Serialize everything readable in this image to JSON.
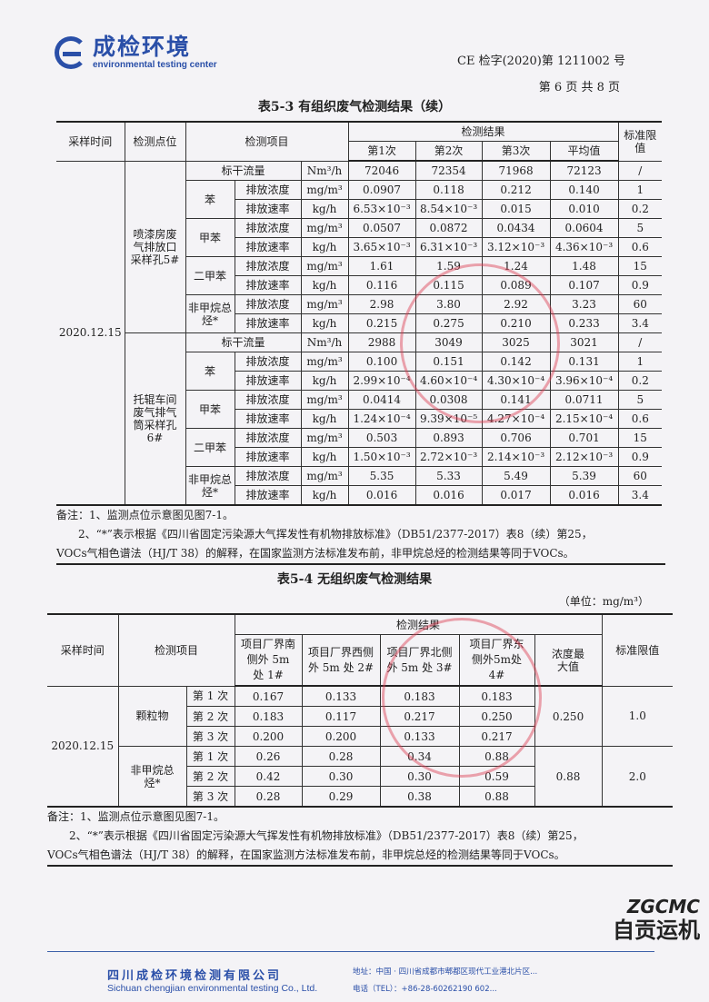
{
  "header": {
    "logo_cn": "成检环境",
    "logo_en": "environmental testing center",
    "doc_no": "CE 检字(2020)第 1211002 号",
    "page": "第 6 页 共 8 页"
  },
  "table1": {
    "title": "表5-3  有组织废气检测结果（续）",
    "headers": {
      "date": "采样时间",
      "location": "检测点位",
      "item": "检测项目",
      "results": "检测结果",
      "runs": [
        "第1次",
        "第2次",
        "第3次",
        "平均值"
      ],
      "limit": "标准限值"
    },
    "date": "2020.12.15",
    "groups": [
      {
        "location": "喷漆房废气排放口采样孔5#",
        "flow": {
          "label": "标干流量",
          "unit": "Nm³/h",
          "values": [
            "72046",
            "72354",
            "71968",
            "72123"
          ],
          "limit": "/"
        },
        "pollutants": [
          {
            "name": "苯",
            "rows": [
              {
                "item": "排放浓度",
                "unit": "mg/m³",
                "values": [
                  "0.0907",
                  "0.118",
                  "0.212",
                  "0.140"
                ],
                "limit": "1"
              },
              {
                "item": "排放速率",
                "unit": "kg/h",
                "values": [
                  "6.53×10⁻³",
                  "8.54×10⁻³",
                  "0.015",
                  "0.010"
                ],
                "limit": "0.2"
              }
            ]
          },
          {
            "name": "甲苯",
            "rows": [
              {
                "item": "排放浓度",
                "unit": "mg/m³",
                "values": [
                  "0.0507",
                  "0.0872",
                  "0.0434",
                  "0.0604"
                ],
                "limit": "5"
              },
              {
                "item": "排放速率",
                "unit": "kg/h",
                "values": [
                  "3.65×10⁻³",
                  "6.31×10⁻³",
                  "3.12×10⁻³",
                  "4.36×10⁻³"
                ],
                "limit": "0.6"
              }
            ]
          },
          {
            "name": "二甲苯",
            "rows": [
              {
                "item": "排放浓度",
                "unit": "mg/m³",
                "values": [
                  "1.61",
                  "1.59",
                  "1.24",
                  "1.48"
                ],
                "limit": "15"
              },
              {
                "item": "排放速率",
                "unit": "kg/h",
                "values": [
                  "0.116",
                  "0.115",
                  "0.089",
                  "0.107"
                ],
                "limit": "0.9"
              }
            ]
          },
          {
            "name": "非甲烷总烃*",
            "rows": [
              {
                "item": "排放浓度",
                "unit": "mg/m³",
                "values": [
                  "2.98",
                  "3.80",
                  "2.92",
                  "3.23"
                ],
                "limit": "60"
              },
              {
                "item": "排放速率",
                "unit": "kg/h",
                "values": [
                  "0.215",
                  "0.275",
                  "0.210",
                  "0.233"
                ],
                "limit": "3.4"
              }
            ]
          }
        ]
      },
      {
        "location": "托辊车间废气排气筒采样孔6#",
        "flow": {
          "label": "标干流量",
          "unit": "Nm³/h",
          "values": [
            "2988",
            "3049",
            "3025",
            "3021"
          ],
          "limit": "/"
        },
        "pollutants": [
          {
            "name": "苯",
            "rows": [
              {
                "item": "排放浓度",
                "unit": "mg/m³",
                "values": [
                  "0.100",
                  "0.151",
                  "0.142",
                  "0.131"
                ],
                "limit": "1"
              },
              {
                "item": "排放速率",
                "unit": "kg/h",
                "values": [
                  "2.99×10⁻⁴",
                  "4.60×10⁻⁴",
                  "4.30×10⁻⁴",
                  "3.96×10⁻⁴"
                ],
                "limit": "0.2"
              }
            ]
          },
          {
            "name": "甲苯",
            "rows": [
              {
                "item": "排放浓度",
                "unit": "mg/m³",
                "values": [
                  "0.0414",
                  "0.0308",
                  "0.141",
                  "0.0711"
                ],
                "limit": "5"
              },
              {
                "item": "排放速率",
                "unit": "kg/h",
                "values": [
                  "1.24×10⁻⁴",
                  "9.39×10⁻⁵",
                  "4.27×10⁻⁴",
                  "2.15×10⁻⁴"
                ],
                "limit": "0.6"
              }
            ]
          },
          {
            "name": "二甲苯",
            "rows": [
              {
                "item": "排放浓度",
                "unit": "mg/m³",
                "values": [
                  "0.503",
                  "0.893",
                  "0.706",
                  "0.701"
                ],
                "limit": "15"
              },
              {
                "item": "排放速率",
                "unit": "kg/h",
                "values": [
                  "1.50×10⁻³",
                  "2.72×10⁻³",
                  "2.14×10⁻³",
                  "2.12×10⁻³"
                ],
                "limit": "0.9"
              }
            ]
          },
          {
            "name": "非甲烷总烃*",
            "rows": [
              {
                "item": "排放浓度",
                "unit": "mg/m³",
                "values": [
                  "5.35",
                  "5.33",
                  "5.49",
                  "5.39"
                ],
                "limit": "60"
              },
              {
                "item": "排放速率",
                "unit": "kg/h",
                "values": [
                  "0.016",
                  "0.016",
                  "0.017",
                  "0.016"
                ],
                "limit": "3.4"
              }
            ]
          }
        ]
      }
    ],
    "notes": [
      "备注：1、监测点位示意图见图7-1。",
      "2、“*”表示根据《四川省固定污染源大气挥发性有机物排放标准》（DB51/2377-2017）表8（续）第25，",
      "VOCs气相色谱法（HJ/T 38）的解释，在国家监测方法标准发布前，非甲烷总烃的检测结果等同于VOCs。"
    ]
  },
  "table2": {
    "title": "表5-4  无组织废气检测结果",
    "unit": "（单位：mg/m³）",
    "headers": {
      "date": "采样时间",
      "item": "检测项目",
      "results": "检测结果",
      "points": [
        "项目厂界南侧外 5m 处 1#",
        "项目厂界西侧外 5m 处 2#",
        "项目厂界北侧外 5m 处 3#",
        "项目厂界东侧外5m处 4#"
      ],
      "max": "浓度最大值",
      "limit": "标准限值"
    },
    "date": "2020.12.15",
    "groups": [
      {
        "name": "颗粒物",
        "max": "0.250",
        "limit": "1.0",
        "rows": [
          {
            "run": "第 1 次",
            "values": [
              "0.167",
              "0.133",
              "0.183",
              "0.183"
            ]
          },
          {
            "run": "第 2 次",
            "values": [
              "0.183",
              "0.117",
              "0.217",
              "0.250"
            ]
          },
          {
            "run": "第 3 次",
            "values": [
              "0.200",
              "0.200",
              "0.133",
              "0.217"
            ]
          }
        ]
      },
      {
        "name": "非甲烷总烃*",
        "max": "0.88",
        "limit": "2.0",
        "rows": [
          {
            "run": "第 1 次",
            "values": [
              "0.26",
              "0.28",
              "0.34",
              "0.88"
            ]
          },
          {
            "run": "第 2 次",
            "values": [
              "0.42",
              "0.30",
              "0.30",
              "0.59"
            ]
          },
          {
            "run": "第 3 次",
            "values": [
              "0.28",
              "0.29",
              "0.38",
              "0.88"
            ]
          }
        ]
      }
    ],
    "notes": [
      "备注：1、监测点位示意图见图7-1。",
      "2、“*”表示根据《四川省固定污染源大气挥发性有机物排放标准》（DB51/2377-2017）表8（续）第25，",
      "VOCs气相色谱法（HJ/T 38）的解释，在国家监测方法标准发布前，非甲烷总烃的检测结果等同于VOCs。"
    ]
  },
  "footer": {
    "company_cn": "四川成检环境检测有限公司",
    "company_en": "Sichuan chengjian environmental testing Co., Ltd.",
    "address": "地址：中国 · 四川省成都市郫都区现代工业港北片区...",
    "tel": "电话（TEL）：+86-28-60262190 602..."
  },
  "watermark": {
    "brand": "ZGCMC",
    "name": "自贡运机"
  },
  "colors": {
    "brand_blue": "#2a4fa8",
    "stamp_red": "#dc3c50"
  }
}
